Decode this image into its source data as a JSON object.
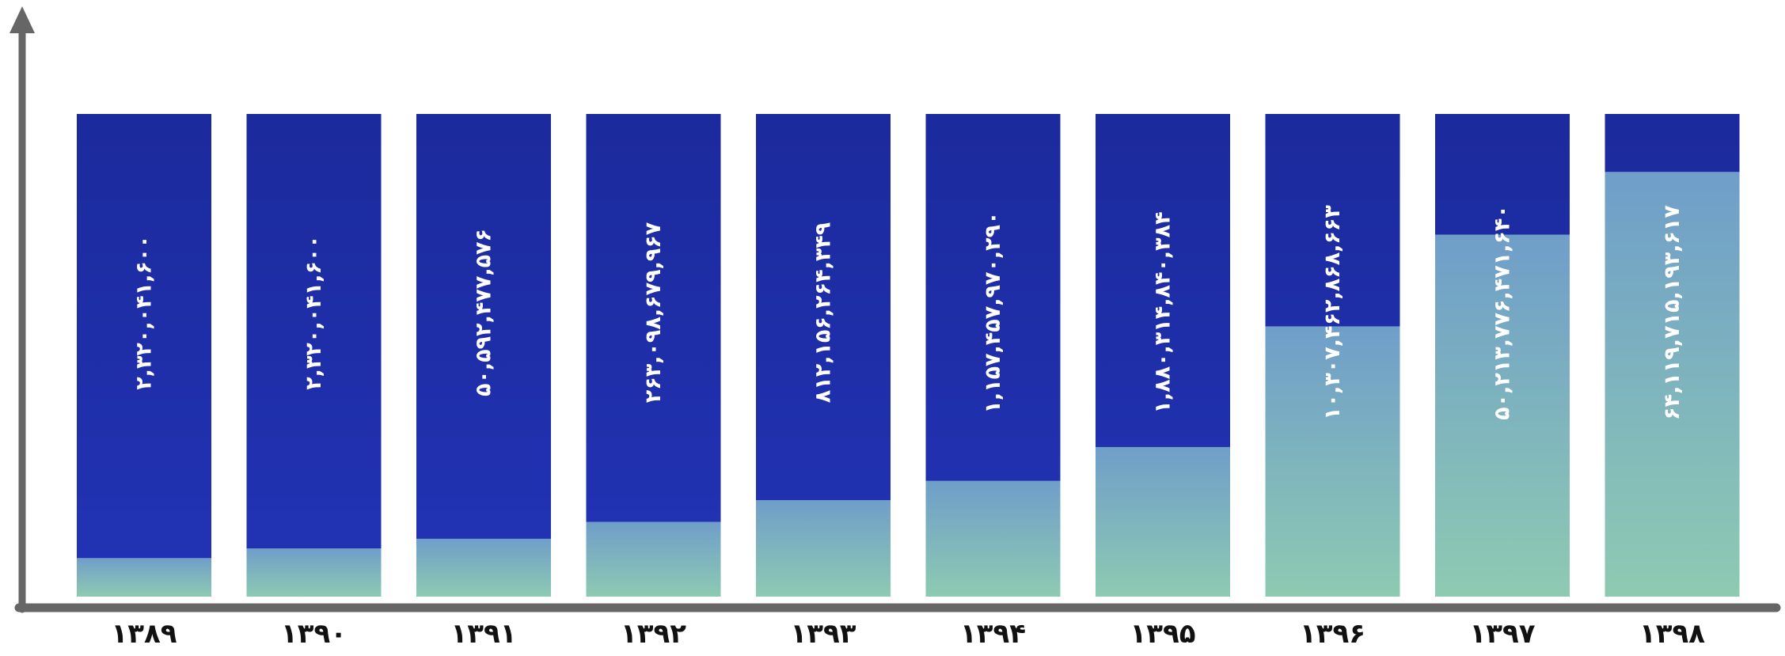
{
  "chart_data": {
    "type": "bar",
    "categories": [
      "۱۳۸۹",
      "۱۳۹۰",
      "۱۳۹۱",
      "۱۳۹۲",
      "۱۳۹۳",
      "۱۳۹۴",
      "۱۳۹۵",
      "۱۳۹۶",
      "۱۳۹۷",
      "۱۳۹۸"
    ],
    "data_labels": [
      "۲,۳۲۰,۰۴۱,۶۰۰",
      "۲,۳۲۰,۰۴۱,۶۰۰",
      "۵۰,۵۹۲,۴۷۷,۵۷۶",
      "۲۶۳,۰۹۸,۶۷۹,۹۶۷",
      "۸۱۲,۱۵۶,۲۶۴,۳۴۹",
      "۱,۱۵۷,۴۵۷,۹۷۰,۲۹۰",
      "۱,۸۸۰,۳۱۴,۸۴۰,۳۸۴",
      "۱۰,۳۰۷,۴۶۲,۸۶۸,۶۶۳",
      "۵۰,۲۱۳,۷۷۶,۴۷۱,۶۴۰",
      "۶۴,۱۱۹,۷۱۵,۱۹۳,۶۱۷"
    ],
    "fill_fraction": [
      0.08,
      0.1,
      0.12,
      0.155,
      0.2,
      0.24,
      0.31,
      0.56,
      0.75,
      0.88
    ],
    "colors": {
      "bar_top": "#1b2a9c",
      "bar_mid": "#2233b6",
      "fill_top": "#6f9ec9",
      "fill_bottom": "#8ecab2",
      "axis": "#666666",
      "category_text": "#111111",
      "value_text": "#ffffff"
    },
    "grid": false,
    "legend": "none"
  }
}
